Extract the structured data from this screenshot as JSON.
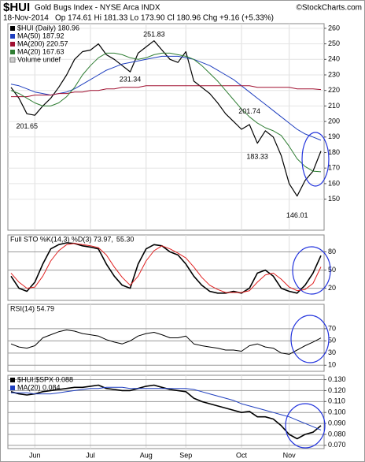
{
  "header": {
    "symbol": "$HUI",
    "name": "Gold Bugs Index - NYSE Arca INDX",
    "credit": "©StockCharts.com",
    "date": "18-Nov-2014",
    "quote": "Op 174.61 Hi 181.33 Lo 173.90 Cl 180.96 Chg +9.16 (+5.33%)"
  },
  "chart_data": [
    {
      "type": "line",
      "legend": "stacked",
      "ylim": [
        130,
        263
      ],
      "yticks": [
        150,
        160,
        170,
        180,
        190,
        200,
        210,
        220,
        230,
        240,
        250,
        260
      ],
      "volume_label": "Volume undef",
      "annotations": [
        251.83,
        231.34,
        201.65,
        201.74,
        183.33,
        146.01
      ],
      "series": [
        {
          "name": "$HUI (Daily) 180.96",
          "color": "#000000",
          "width": 1.2,
          "values": [
            222,
            215,
            205,
            204,
            210,
            215,
            222,
            230,
            240,
            245,
            246,
            250,
            243,
            240,
            236,
            232,
            244,
            248,
            252,
            246,
            240,
            238,
            245,
            226,
            222,
            218,
            212,
            205,
            200,
            195,
            198,
            186,
            194,
            190,
            178,
            160,
            152,
            162,
            168,
            180.96
          ]
        },
        {
          "name": "MA(50) 187.92",
          "color": "#1f3fbf",
          "width": 1,
          "values": [
            224,
            223,
            221,
            219,
            218,
            217,
            218,
            219,
            221,
            224,
            227,
            230,
            233,
            235,
            237,
            238,
            239,
            240,
            241,
            242,
            242,
            242,
            241,
            240,
            238,
            236,
            233,
            230,
            227,
            223,
            219,
            215,
            211,
            207,
            203,
            199,
            195,
            192,
            190,
            187.92
          ]
        },
        {
          "name": "MA(200) 220.57",
          "color": "#a01030",
          "width": 1,
          "values": [
            216,
            216,
            216,
            217,
            217,
            217,
            218,
            218,
            219,
            219,
            220,
            220,
            221,
            221,
            222,
            222,
            222,
            223,
            223,
            223,
            223,
            223,
            223,
            223,
            223,
            223,
            223,
            223,
            223,
            223,
            223,
            222,
            222,
            222,
            222,
            222,
            221,
            221,
            221,
            220.57
          ]
        },
        {
          "name": "MA(20) 167.63",
          "color": "#2e7d32",
          "width": 1,
          "values": [
            220,
            218,
            215,
            212,
            210,
            210,
            212,
            216,
            222,
            230,
            236,
            241,
            244,
            244,
            243,
            241,
            240,
            241,
            243,
            244,
            244,
            243,
            242,
            240,
            236,
            231,
            226,
            220,
            214,
            208,
            203,
            199,
            196,
            194,
            191,
            184,
            176,
            171,
            168,
            167.63
          ]
        }
      ]
    },
    {
      "type": "line",
      "legend": "inline",
      "ylim": [
        0,
        108
      ],
      "yticks": [
        20,
        50,
        80
      ],
      "series": [
        {
          "name": "Full STO %K(14,3) %D(3) 73.97,",
          "color": "#000000",
          "width": 1.6,
          "values": [
            40,
            20,
            15,
            30,
            60,
            85,
            92,
            95,
            94,
            90,
            88,
            85,
            60,
            40,
            25,
            20,
            60,
            85,
            92,
            90,
            80,
            75,
            60,
            40,
            25,
            15,
            12,
            12,
            15,
            12,
            20,
            45,
            50,
            40,
            20,
            15,
            12,
            25,
            45,
            73.97
          ]
        },
        {
          "name": "55.30",
          "color": "#e02020",
          "width": 1,
          "values": [
            45,
            30,
            20,
            22,
            40,
            65,
            82,
            92,
            94,
            92,
            90,
            87,
            75,
            55,
            38,
            25,
            40,
            65,
            82,
            90,
            85,
            78,
            70,
            55,
            38,
            25,
            18,
            13,
            13,
            13,
            16,
            30,
            42,
            45,
            35,
            22,
            16,
            18,
            28,
            55.3
          ]
        }
      ]
    },
    {
      "type": "line",
      "legend": "inline",
      "ylim": [
        0,
        110
      ],
      "yticks": [
        10,
        30,
        50,
        70
      ],
      "series": [
        {
          "name": "RSI(14) 54.79",
          "color": "#000000",
          "width": 1,
          "values": [
            45,
            40,
            38,
            42,
            55,
            60,
            65,
            68,
            66,
            62,
            60,
            58,
            52,
            48,
            45,
            50,
            58,
            62,
            64,
            60,
            55,
            55,
            58,
            45,
            42,
            40,
            38,
            35,
            35,
            33,
            42,
            45,
            40,
            38,
            30,
            28,
            35,
            42,
            48,
            54.79
          ]
        }
      ]
    },
    {
      "type": "line",
      "legend": "stacked",
      "ylim": [
        0.067,
        0.134
      ],
      "yticks": [
        {
          "value": 0.07,
          "label": "0.070"
        },
        {
          "value": 0.08,
          "label": "0.080"
        },
        {
          "value": 0.09,
          "label": "0.090"
        },
        {
          "value": 0.1,
          "label": "0.100"
        },
        {
          "value": 0.11,
          "label": "0.110"
        },
        {
          "value": 0.12,
          "label": "0.120"
        },
        {
          "value": 0.13,
          "label": "0.130"
        }
      ],
      "categories": [
        null,
        null,
        null,
        "Jun",
        null,
        null,
        null,
        null,
        null,
        null,
        "Jul",
        null,
        null,
        null,
        null,
        null,
        null,
        "Aug",
        null,
        null,
        null,
        null,
        "Sep",
        null,
        null,
        null,
        null,
        null,
        null,
        "Oct",
        null,
        null,
        null,
        null,
        null,
        "Nov",
        null,
        null,
        null,
        null
      ],
      "series": [
        {
          "name": "$HUI:$SPX 0.088",
          "color": "#000000",
          "width": 1.6,
          "values": [
            0.119,
            0.117,
            0.116,
            0.117,
            0.119,
            0.12,
            0.121,
            0.122,
            0.123,
            0.123,
            0.124,
            0.125,
            0.122,
            0.121,
            0.12,
            0.12,
            0.122,
            0.124,
            0.125,
            0.123,
            0.121,
            0.12,
            0.119,
            0.113,
            0.11,
            0.108,
            0.106,
            0.104,
            0.102,
            0.1,
            0.101,
            0.096,
            0.096,
            0.094,
            0.088,
            0.08,
            0.076,
            0.08,
            0.082,
            0.088
          ]
        },
        {
          "name": "MA(20) 0.084",
          "color": "#1f3fbf",
          "width": 1,
          "values": [
            0.118,
            0.118,
            0.118,
            0.117,
            0.117,
            0.117,
            0.118,
            0.119,
            0.12,
            0.121,
            0.122,
            0.122,
            0.123,
            0.123,
            0.123,
            0.122,
            0.122,
            0.122,
            0.122,
            0.122,
            0.122,
            0.122,
            0.122,
            0.121,
            0.119,
            0.117,
            0.115,
            0.113,
            0.111,
            0.108,
            0.106,
            0.104,
            0.102,
            0.1,
            0.098,
            0.096,
            0.093,
            0.09,
            0.087,
            0.084
          ]
        }
      ]
    }
  ]
}
